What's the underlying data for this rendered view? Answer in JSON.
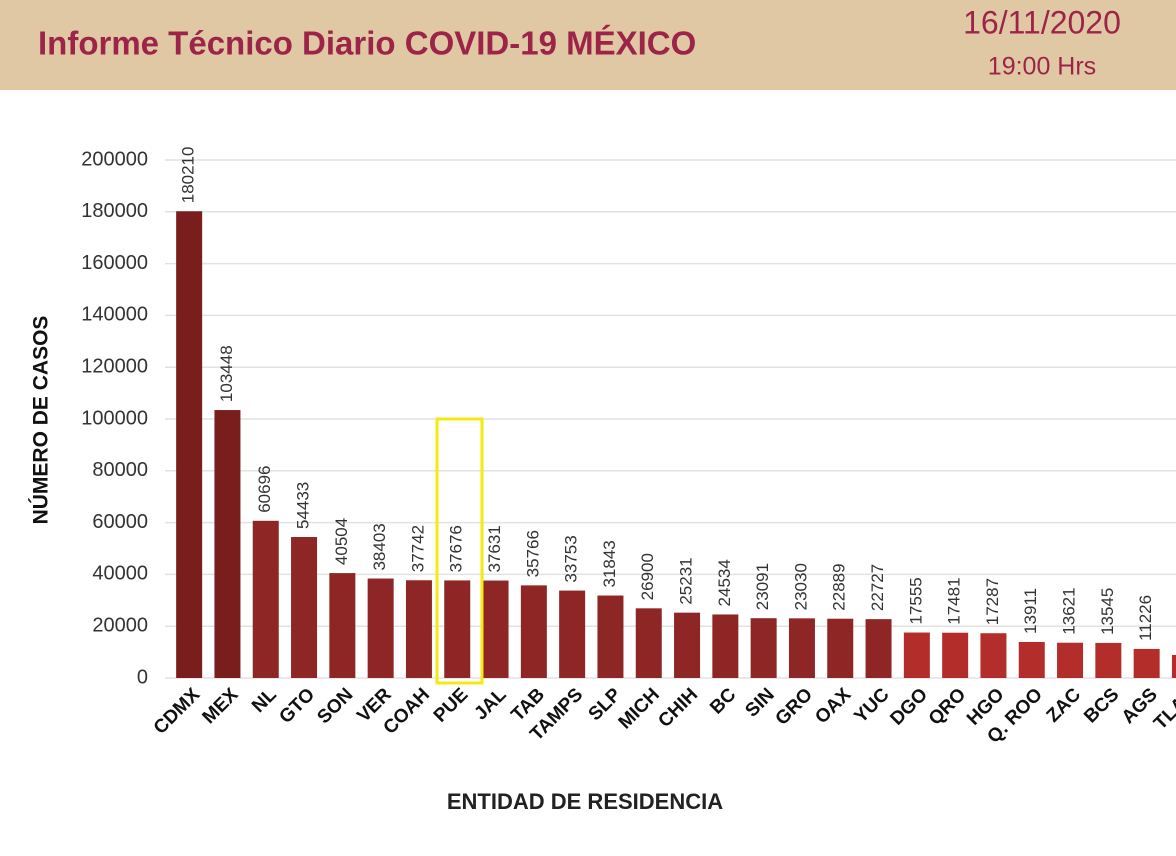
{
  "header": {
    "title": "Informe Técnico Diario COVID-19 MÉXICO",
    "date": "16/11/2020",
    "time": "19:00 Hrs"
  },
  "chart_data": {
    "type": "bar",
    "x_label": "ENTIDAD DE RESIDENCIA",
    "y_label": "NÚMERO DE CASOS",
    "categories": [
      "CDMX",
      "MEX",
      "NL",
      "GTO",
      "SON",
      "VER",
      "COAH",
      "PUE",
      "JAL",
      "TAB",
      "TAMPS",
      "SLP",
      "MICH",
      "CHIH",
      "BC",
      "SIN",
      "GRO",
      "OAX",
      "YUC",
      "DGO",
      "QRO",
      "HGO",
      "Q. ROO",
      "ZAC",
      "BCS",
      "AGS",
      "TLAX"
    ],
    "values": [
      180210,
      103448,
      60696,
      54433,
      40504,
      38403,
      37742,
      37676,
      37631,
      35766,
      33753,
      31843,
      26900,
      25231,
      24534,
      23091,
      23030,
      22889,
      22727,
      17555,
      17481,
      17287,
      13911,
      13621,
      13545,
      11226,
      8900
    ],
    "colors": [
      "#7a1d1d",
      "#7a1d1d",
      "#8e2626",
      "#8e2626",
      "#8e2626",
      "#8e2626",
      "#8e2626",
      "#8e2626",
      "#8e2626",
      "#8e2626",
      "#8e2626",
      "#8e2626",
      "#8e2626",
      "#8e2626",
      "#8e2626",
      "#8e2626",
      "#8e2626",
      "#8e2626",
      "#8e2626",
      "#b32d2a",
      "#b32d2a",
      "#b32d2a",
      "#b32d2a",
      "#b32d2a",
      "#b32d2a",
      "#b32d2a",
      "#b32d2a"
    ],
    "ylim": [
      0,
      200000
    ],
    "yticks": [
      0,
      20000,
      40000,
      60000,
      80000,
      100000,
      120000,
      140000,
      160000,
      180000,
      200000
    ],
    "grid": true
  }
}
